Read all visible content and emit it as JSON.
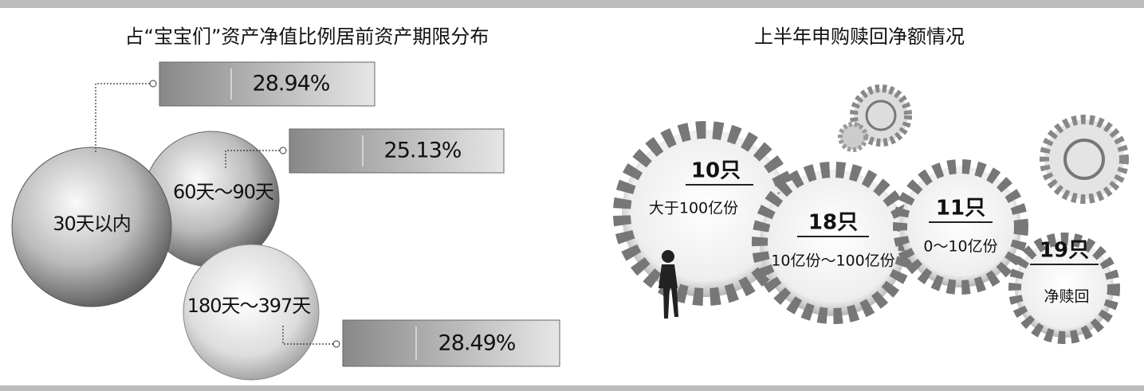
{
  "left": {
    "title": "占“宝宝们”资产净值比例居前资产期限分布",
    "items": [
      {
        "label": "30天以内",
        "value": "28.94%"
      },
      {
        "label": "60天～90天",
        "value": "25.13%"
      },
      {
        "label": "180天～397天",
        "value": "28.49%"
      }
    ]
  },
  "right": {
    "title": "上半年申购赎回净额情况",
    "gears": [
      {
        "count": "10只",
        "label": "大于100亿份"
      },
      {
        "count": "18只",
        "label": "10亿份～100亿份"
      },
      {
        "count": "11只",
        "label": "0～10亿份"
      },
      {
        "count": "19只",
        "label": "净赎回"
      }
    ]
  }
}
